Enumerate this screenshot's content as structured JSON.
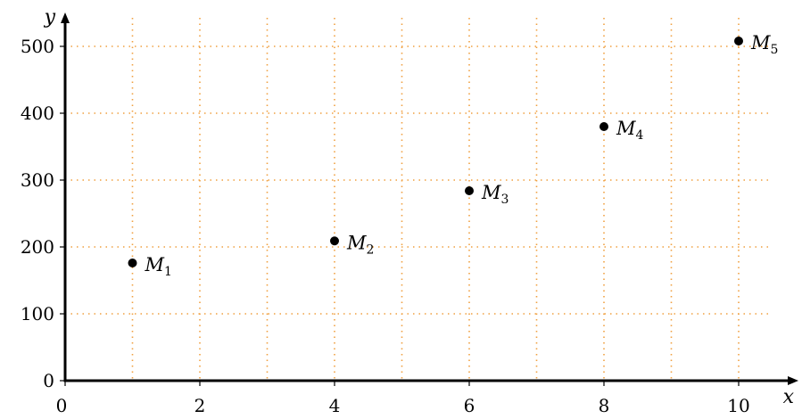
{
  "chart_data": {
    "type": "scatter",
    "xlabel": "x",
    "ylabel": "y",
    "xlim": [
      0,
      10.5
    ],
    "ylim": [
      0,
      540
    ],
    "grid": true,
    "grid_style": "dotted",
    "grid_x": [
      1,
      2,
      3,
      4,
      5,
      6,
      7,
      8,
      9,
      10
    ],
    "grid_y": [
      100,
      200,
      300,
      400,
      500
    ],
    "x_ticks": [
      {
        "value": 0,
        "label": "0"
      },
      {
        "value": 2,
        "label": "2"
      },
      {
        "value": 4,
        "label": "4"
      },
      {
        "value": 6,
        "label": "6"
      },
      {
        "value": 8,
        "label": "8"
      },
      {
        "value": 10,
        "label": "10"
      }
    ],
    "y_ticks": [
      {
        "value": 0,
        "label": "0"
      },
      {
        "value": 100,
        "label": "100"
      },
      {
        "value": 200,
        "label": "200"
      },
      {
        "value": 300,
        "label": "300"
      },
      {
        "value": 400,
        "label": "400"
      },
      {
        "value": 500,
        "label": "500"
      }
    ],
    "points": [
      {
        "x": 1,
        "y": 176,
        "label": "M",
        "sub": "1"
      },
      {
        "x": 4,
        "y": 209,
        "label": "M",
        "sub": "2"
      },
      {
        "x": 6,
        "y": 284,
        "label": "M",
        "sub": "3"
      },
      {
        "x": 8,
        "y": 380,
        "label": "M",
        "sub": "4"
      },
      {
        "x": 10,
        "y": 508,
        "label": "M",
        "sub": "5"
      }
    ],
    "colors": {
      "grid": "#f0a040",
      "axis": "#000000",
      "point": "#000000"
    }
  }
}
